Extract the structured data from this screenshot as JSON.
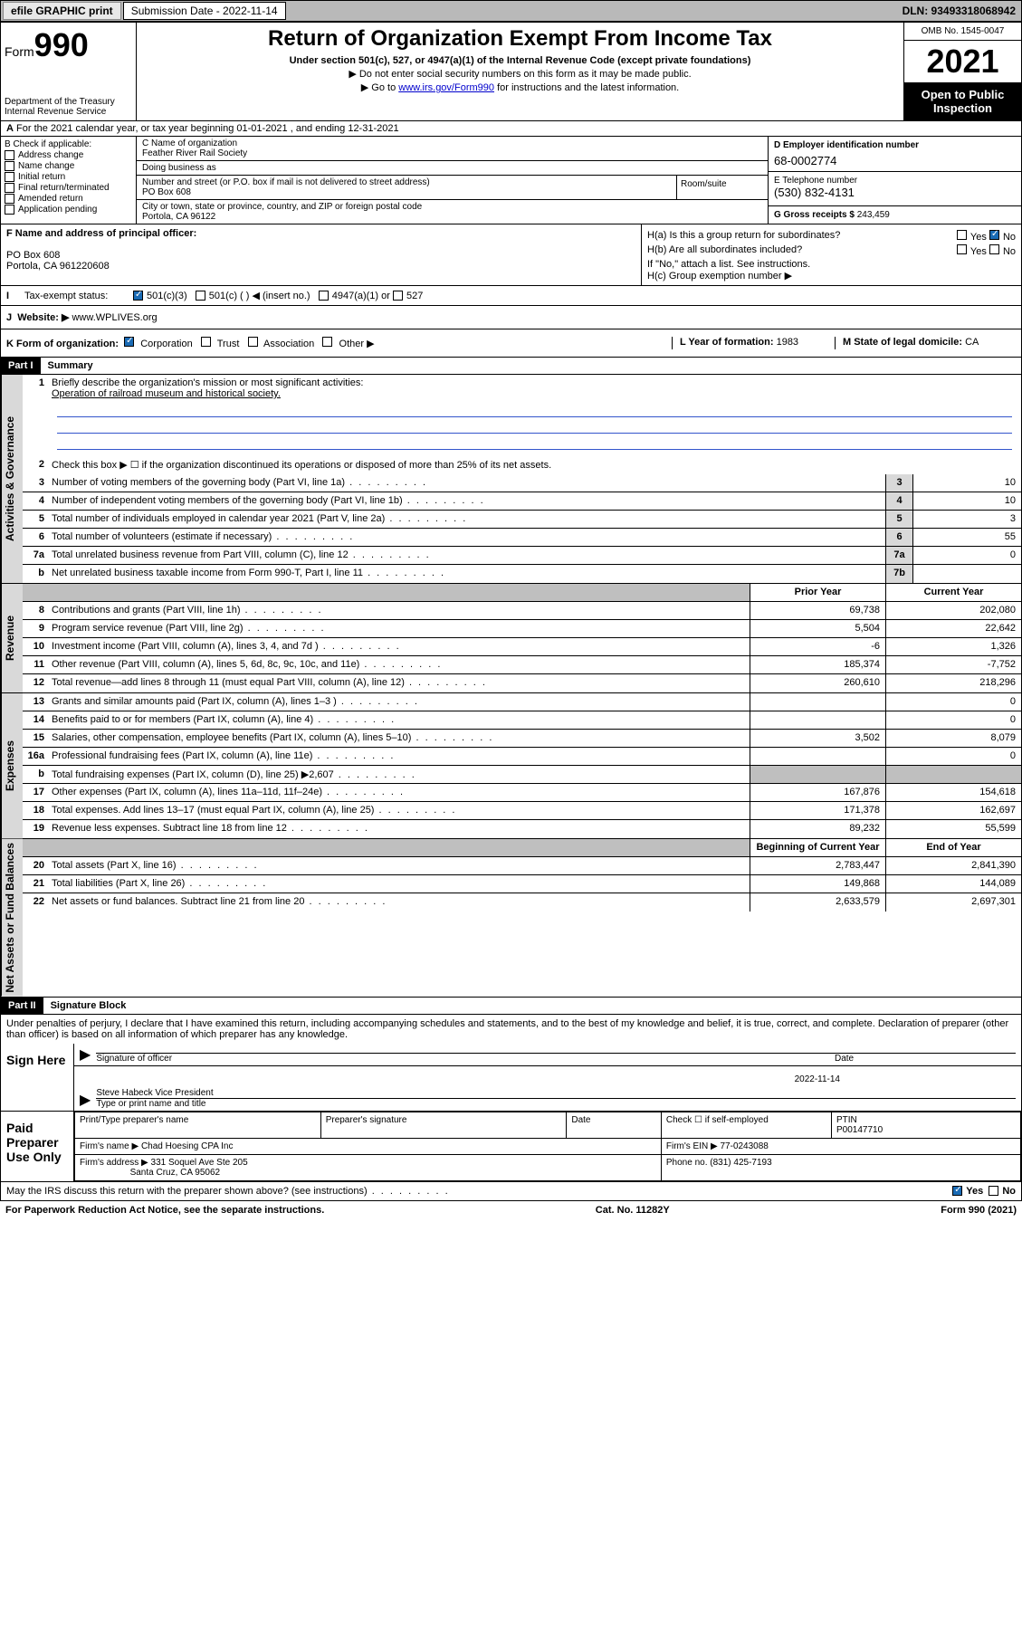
{
  "topbar": {
    "efile": "efile GRAPHIC print",
    "sub_label": "Submission Date - 2022-11-14",
    "dln": "DLN: 93493318068942"
  },
  "header": {
    "form_prefix": "Form",
    "form_number": "990",
    "title": "Return of Organization Exempt From Income Tax",
    "subtitle": "Under section 501(c), 527, or 4947(a)(1) of the Internal Revenue Code (except private foundations)",
    "note1": "▶ Do not enter social security numbers on this form as it may be made public.",
    "note2_pre": "▶ Go to ",
    "note2_link": "www.irs.gov/Form990",
    "note2_post": " for instructions and the latest information.",
    "dept": "Department of the Treasury Internal Revenue Service",
    "omb": "OMB No. 1545-0047",
    "year": "2021",
    "open": "Open to Public Inspection"
  },
  "row_a": "For the 2021 calendar year, or tax year beginning 01-01-2021   , and ending 12-31-2021",
  "section_b": {
    "b_label": "B Check if applicable:",
    "checks": [
      "Address change",
      "Name change",
      "Initial return",
      "Final return/terminated",
      "Amended return",
      "Application pending"
    ],
    "c_label": "C Name of organization",
    "org_name": "Feather River Rail Society",
    "dba_label": "Doing business as",
    "addr_label": "Number and street (or P.O. box if mail is not delivered to street address)",
    "room_label": "Room/suite",
    "addr": "PO Box 608",
    "city_label": "City or town, state or province, country, and ZIP or foreign postal code",
    "city": "Portola, CA  96122",
    "d_label": "D Employer identification number",
    "ein": "68-0002774",
    "e_label": "E Telephone number",
    "phone": "(530) 832-4131",
    "g_label": "G Gross receipts $",
    "gross": "243,459"
  },
  "row_f": {
    "f_label": "F Name and address of principal officer:",
    "f_addr1": "PO Box 608",
    "f_addr2": "Portola, CA  961220608",
    "ha": "H(a)  Is this a group return for subordinates?",
    "hb": "H(b)  Are all subordinates included?",
    "hb_note": "If \"No,\" attach a list. See instructions.",
    "hc": "H(c)  Group exemption number ▶",
    "yes": "Yes",
    "no": "No"
  },
  "row_i": {
    "label": "Tax-exempt status:",
    "opt1": "501(c)(3)",
    "opt2": "501(c) (  ) ◀ (insert no.)",
    "opt3": "4947(a)(1) or",
    "opt4": "527"
  },
  "row_j": {
    "label": "Website: ▶",
    "value": "www.WPLIVES.org"
  },
  "row_k": {
    "label": "K Form of organization:",
    "opts": [
      "Corporation",
      "Trust",
      "Association",
      "Other ▶"
    ],
    "l_label": "L Year of formation:",
    "l_val": "1983",
    "m_label": "M State of legal domicile:",
    "m_val": "CA"
  },
  "part1": {
    "header": "Part I",
    "title": "Summary",
    "line1_label": "Briefly describe the organization's mission or most significant activities:",
    "mission": "Operation of railroad museum and historical society.",
    "line2": "Check this box ▶ ☐  if the organization discontinued its operations or disposed of more than 25% of its net assets.",
    "sections": {
      "gov": "Activities & Governance",
      "rev": "Revenue",
      "exp": "Expenses",
      "net": "Net Assets or Fund Balances"
    },
    "col_prior": "Prior Year",
    "col_current": "Current Year",
    "col_begin": "Beginning of Current Year",
    "col_end": "End of Year",
    "gov_lines": [
      {
        "n": "3",
        "t": "Number of voting members of the governing body (Part VI, line 1a)",
        "box": "3",
        "v": "10"
      },
      {
        "n": "4",
        "t": "Number of independent voting members of the governing body (Part VI, line 1b)",
        "box": "4",
        "v": "10"
      },
      {
        "n": "5",
        "t": "Total number of individuals employed in calendar year 2021 (Part V, line 2a)",
        "box": "5",
        "v": "3"
      },
      {
        "n": "6",
        "t": "Total number of volunteers (estimate if necessary)",
        "box": "6",
        "v": "55"
      },
      {
        "n": "7a",
        "t": "Total unrelated business revenue from Part VIII, column (C), line 12",
        "box": "7a",
        "v": "0"
      },
      {
        "n": "b",
        "t": "Net unrelated business taxable income from Form 990-T, Part I, line 11",
        "box": "7b",
        "v": ""
      }
    ],
    "rev_lines": [
      {
        "n": "8",
        "t": "Contributions and grants (Part VIII, line 1h)",
        "p": "69,738",
        "c": "202,080"
      },
      {
        "n": "9",
        "t": "Program service revenue (Part VIII, line 2g)",
        "p": "5,504",
        "c": "22,642"
      },
      {
        "n": "10",
        "t": "Investment income (Part VIII, column (A), lines 3, 4, and 7d )",
        "p": "-6",
        "c": "1,326"
      },
      {
        "n": "11",
        "t": "Other revenue (Part VIII, column (A), lines 5, 6d, 8c, 9c, 10c, and 11e)",
        "p": "185,374",
        "c": "-7,752"
      },
      {
        "n": "12",
        "t": "Total revenue—add lines 8 through 11 (must equal Part VIII, column (A), line 12)",
        "p": "260,610",
        "c": "218,296"
      }
    ],
    "exp_lines": [
      {
        "n": "13",
        "t": "Grants and similar amounts paid (Part IX, column (A), lines 1–3 )",
        "p": "",
        "c": "0"
      },
      {
        "n": "14",
        "t": "Benefits paid to or for members (Part IX, column (A), line 4)",
        "p": "",
        "c": "0"
      },
      {
        "n": "15",
        "t": "Salaries, other compensation, employee benefits (Part IX, column (A), lines 5–10)",
        "p": "3,502",
        "c": "8,079"
      },
      {
        "n": "16a",
        "t": "Professional fundraising fees (Part IX, column (A), line 11e)",
        "p": "",
        "c": "0"
      },
      {
        "n": "b",
        "t": "Total fundraising expenses (Part IX, column (D), line 25) ▶2,607",
        "p": "shaded",
        "c": "shaded"
      },
      {
        "n": "17",
        "t": "Other expenses (Part IX, column (A), lines 11a–11d, 11f–24e)",
        "p": "167,876",
        "c": "154,618"
      },
      {
        "n": "18",
        "t": "Total expenses. Add lines 13–17 (must equal Part IX, column (A), line 25)",
        "p": "171,378",
        "c": "162,697"
      },
      {
        "n": "19",
        "t": "Revenue less expenses. Subtract line 18 from line 12",
        "p": "89,232",
        "c": "55,599"
      }
    ],
    "net_lines": [
      {
        "n": "20",
        "t": "Total assets (Part X, line 16)",
        "p": "2,783,447",
        "c": "2,841,390"
      },
      {
        "n": "21",
        "t": "Total liabilities (Part X, line 26)",
        "p": "149,868",
        "c": "144,089"
      },
      {
        "n": "22",
        "t": "Net assets or fund balances. Subtract line 21 from line 20",
        "p": "2,633,579",
        "c": "2,697,301"
      }
    ]
  },
  "part2": {
    "header": "Part II",
    "title": "Signature Block",
    "intro": "Under penalties of perjury, I declare that I have examined this return, including accompanying schedules and statements, and to the best of my knowledge and belief, it is true, correct, and complete. Declaration of preparer (other than officer) is based on all information of which preparer has any knowledge.",
    "sign_here": "Sign Here",
    "sig_officer": "Signature of officer",
    "sig_date_label": "Date",
    "sig_date": "2022-11-14",
    "officer_name": "Steve Habeck  Vice President",
    "type_name": "Type or print name and title",
    "paid_prep": "Paid Preparer Use Only",
    "prep_name_label": "Print/Type preparer's name",
    "prep_sig_label": "Preparer's signature",
    "date_label": "Date",
    "check_self": "Check ☐ if self-employed",
    "ptin_label": "PTIN",
    "ptin": "P00147710",
    "firm_name_label": "Firm's name    ▶",
    "firm_name": "Chad Hoesing CPA Inc",
    "firm_ein_label": "Firm's EIN ▶",
    "firm_ein": "77-0243088",
    "firm_addr_label": "Firm's address ▶",
    "firm_addr1": "331 Soquel Ave Ste 205",
    "firm_addr2": "Santa Cruz, CA  95062",
    "phone_label": "Phone no.",
    "phone": "(831) 425-7193",
    "discuss": "May the IRS discuss this return with the preparer shown above? (see instructions)",
    "yes": "Yes",
    "no": "No"
  },
  "footer": {
    "paperwork": "For Paperwork Reduction Act Notice, see the separate instructions.",
    "cat": "Cat. No. 11282Y",
    "form": "Form 990 (2021)"
  }
}
